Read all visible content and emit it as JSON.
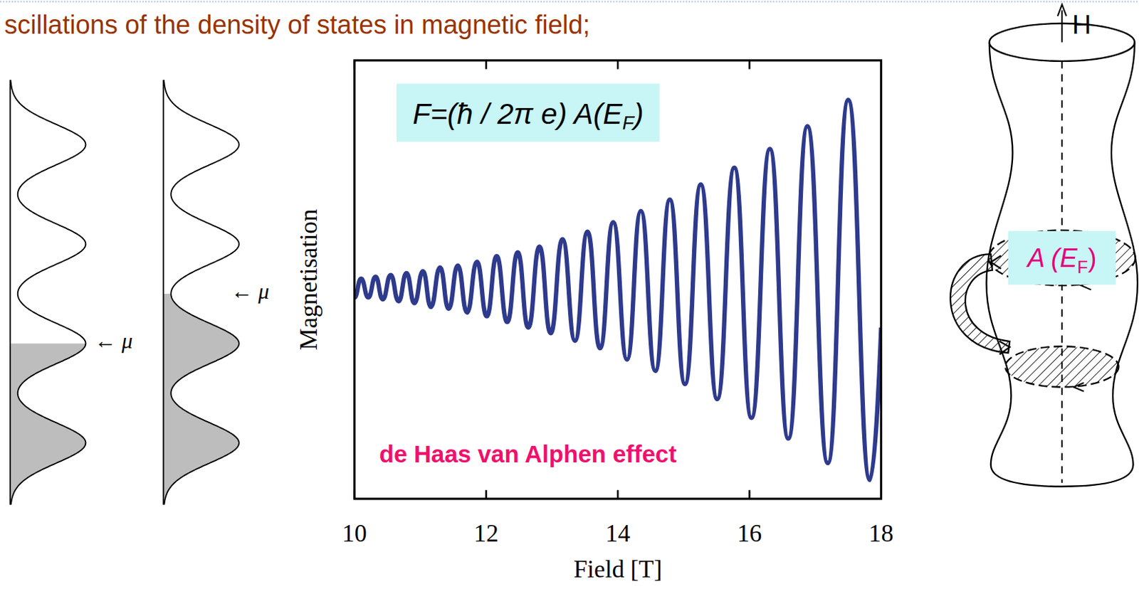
{
  "header": {
    "title": "scillations of the density of states in magnetic field;"
  },
  "dos_diagram": {
    "panels": [
      {
        "mu_label": "← μ",
        "mu_level": 1
      },
      {
        "mu_label": "← μ",
        "mu_level": 1.5
      }
    ]
  },
  "chart_data": {
    "type": "line",
    "x_label": "Field [T]",
    "y_label": "Magnetisation",
    "annotations": [
      {
        "text": "F=(ħ / 2π e) A(E",
        "subscript": "F",
        "text_end": ")"
      },
      {
        "text": "de Haas van Alphen effect"
      }
    ],
    "x": [
      10.0,
      10.1,
      10.21,
      10.32,
      10.43,
      10.55,
      10.67,
      10.79,
      10.91,
      11.04,
      11.16,
      11.3,
      11.43,
      11.57,
      11.71,
      11.86,
      12.01,
      12.16,
      12.32,
      12.48,
      12.64,
      12.81,
      12.98,
      13.16,
      13.35,
      13.54,
      13.73,
      13.93,
      14.14,
      14.35,
      14.57,
      14.79,
      15.02,
      15.26,
      15.51,
      15.77,
      16.03,
      16.31,
      16.59,
      16.88,
      17.19,
      17.5,
      17.83,
      18.0
    ],
    "series": [
      {
        "color": "#2e3a8c",
        "line_style": "solid",
        "values": [
          -0.05,
          0.05,
          -0.05,
          0.06,
          -0.06,
          0.07,
          -0.07,
          0.08,
          -0.08,
          0.09,
          -0.1,
          0.11,
          -0.11,
          0.12,
          -0.13,
          0.14,
          -0.15,
          0.17,
          -0.18,
          0.19,
          -0.21,
          0.22,
          -0.24,
          0.26,
          -0.28,
          0.3,
          -0.32,
          0.35,
          -0.38,
          0.41,
          -0.44,
          0.47,
          -0.51,
          0.55,
          -0.59,
          0.64,
          -0.69,
          0.74,
          -0.8,
          0.86,
          -0.93,
          1.0,
          -1.02,
          -0.21
        ]
      }
    ],
    "xlim": [
      10,
      18
    ],
    "xticks": [
      10,
      12,
      14,
      16,
      18
    ],
    "ylim": [
      -1.12,
      1.21
    ],
    "grid": false,
    "tick_labels": "x"
  },
  "fermi_surface": {
    "field_label": "H",
    "area_label": {
      "text": "A (E",
      "subscript": "F",
      "text_end": ")"
    }
  }
}
